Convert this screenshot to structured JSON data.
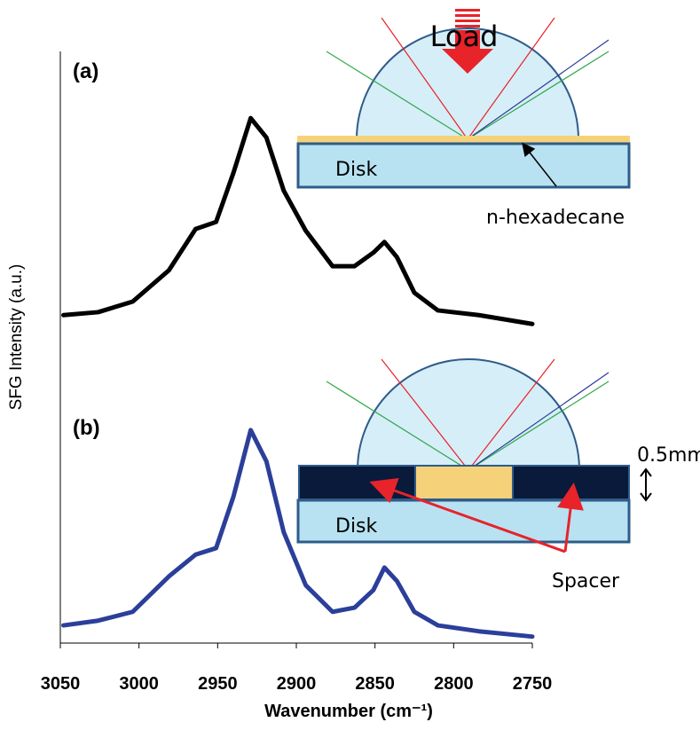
{
  "chart_data": {
    "type": "line",
    "xlabel": "Wavenumber (cm⁻¹)",
    "ylabel": "SFG Intensity (a.u.)",
    "x": [
      3048,
      3026,
      3004,
      2981,
      2964,
      2951,
      2940,
      2929,
      2919,
      2908,
      2894,
      2877,
      2863,
      2851,
      2844,
      2836,
      2825,
      2810,
      2784,
      2750
    ],
    "series": [
      {
        "name": "(a)",
        "color": "#000000",
        "values": [
          55.6,
          56.1,
          57.9,
          63.2,
          70.2,
          71.4,
          79.7,
          89.0,
          85.7,
          76.7,
          69.9,
          63.9,
          63.9,
          66.2,
          68.0,
          65.4,
          59.4,
          56.4,
          55.6,
          54.1
        ]
      },
      {
        "name": "(b)",
        "color": "#2b3f9a",
        "values": [
          3.0,
          3.8,
          5.3,
          11.3,
          15.0,
          16.1,
          24.8,
          36.1,
          30.8,
          18.8,
          9.8,
          5.3,
          6.0,
          9.0,
          12.8,
          10.5,
          5.3,
          3.0,
          2.0,
          1.1
        ]
      }
    ],
    "xlim": [
      3050,
      2750
    ],
    "xticks": [
      3050,
      3000,
      2950,
      2900,
      2850,
      2800,
      2750
    ],
    "ylim": [
      0,
      100
    ],
    "annotations": [
      "Load",
      "Disk",
      "n-hexadecane",
      "Disk",
      "Spacer",
      "0.5mm"
    ]
  }
}
